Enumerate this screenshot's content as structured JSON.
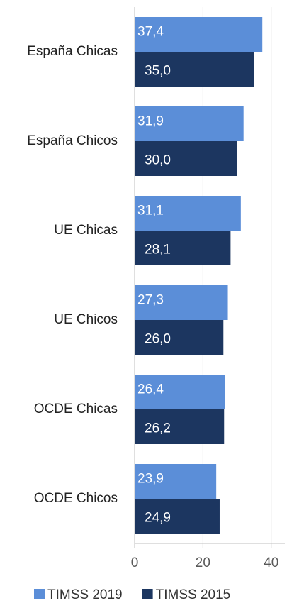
{
  "chart_data": {
    "type": "bar",
    "orientation": "horizontal",
    "categories": [
      "España Chicas",
      "España Chicos",
      "UE Chicas",
      "UE Chicos",
      "OCDE Chicas",
      "OCDE Chicos"
    ],
    "series": [
      {
        "name": "TIMSS 2019",
        "color": "#5b8ed8",
        "values": [
          37.4,
          31.9,
          31.1,
          27.3,
          26.4,
          23.9
        ],
        "value_labels": [
          "37,4",
          "31,9",
          "31,1",
          "27,3",
          "26,4",
          "23,9"
        ]
      },
      {
        "name": "TIMSS 2015",
        "color": "#1c3660",
        "values": [
          35.0,
          30.0,
          28.1,
          26.0,
          26.2,
          24.9
        ],
        "value_labels": [
          "35,0",
          "30,0",
          "28,1",
          "26,0",
          "26,2",
          "24,9"
        ]
      }
    ],
    "xlim": [
      0,
      44
    ],
    "xticks": [
      0,
      20,
      40
    ],
    "grid": true,
    "legend": "bottom"
  }
}
